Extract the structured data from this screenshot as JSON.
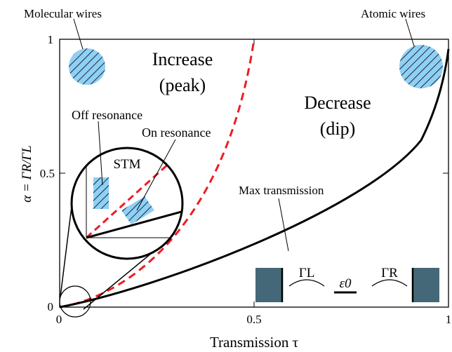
{
  "colors": {
    "dashed_curve": "#ee1c24",
    "solid_curve": "#000000",
    "hatch_fill": "#8fd0f5",
    "lead_fill": "#456878"
  },
  "figure": {
    "xaxis_label": "Transmission τ",
    "yaxis_label": "α = ΓR/ΓL",
    "x_ticks": [
      "0",
      "0.5",
      "1"
    ],
    "y_ticks": [
      "0",
      "0.5",
      "1"
    ],
    "regions": {
      "increase_line1": "Increase",
      "increase_line2": "(peak)",
      "decrease_line1": "Decrease",
      "decrease_line2": "(dip)"
    },
    "labels": {
      "molecular_wires": "Molecular wires",
      "atomic_wires": "Atomic wires",
      "off_resonance": "Off resonance",
      "on_resonance": "On resonance",
      "stm": "STM",
      "max_transmission": "Max transmission"
    },
    "schematic": {
      "gamma_left": "ΓL",
      "epsilon": "ε0",
      "gamma_right": "ΓR"
    }
  }
}
